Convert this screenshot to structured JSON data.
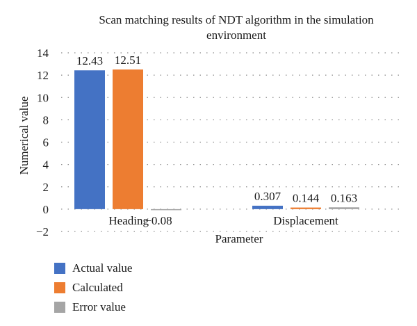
{
  "chart_data": {
    "type": "bar",
    "title_lines": [
      "Scan matching results of NDT algorithm in the simulation",
      "environment"
    ],
    "xlabel": "Parameter",
    "ylabel": "Numerical value",
    "categories": [
      "Heading",
      "Displacement"
    ],
    "series": [
      {
        "name": "Actual value",
        "color": "#4472c4",
        "values": [
          12.43,
          0.307
        ],
        "labels": [
          "12.43",
          "0.307"
        ]
      },
      {
        "name": "Calculated",
        "color": "#ed7d31",
        "values": [
          12.51,
          0.144
        ],
        "labels": [
          "12.51",
          "0.144"
        ]
      },
      {
        "name": "Error value",
        "color": "#a5a5a5",
        "values": [
          -0.08,
          0.163
        ],
        "labels": [
          "−0.08",
          "0.163"
        ]
      }
    ],
    "ylim": [
      -2,
      14
    ],
    "yticks": [
      -2,
      0,
      2,
      4,
      6,
      8,
      10,
      12,
      14
    ],
    "ytick_labels": [
      "−2",
      "0",
      "2",
      "4",
      "6",
      "8",
      "10",
      "12",
      "14"
    ],
    "grid": "dotted-horizontal",
    "legend_position": "bottom-left"
  }
}
